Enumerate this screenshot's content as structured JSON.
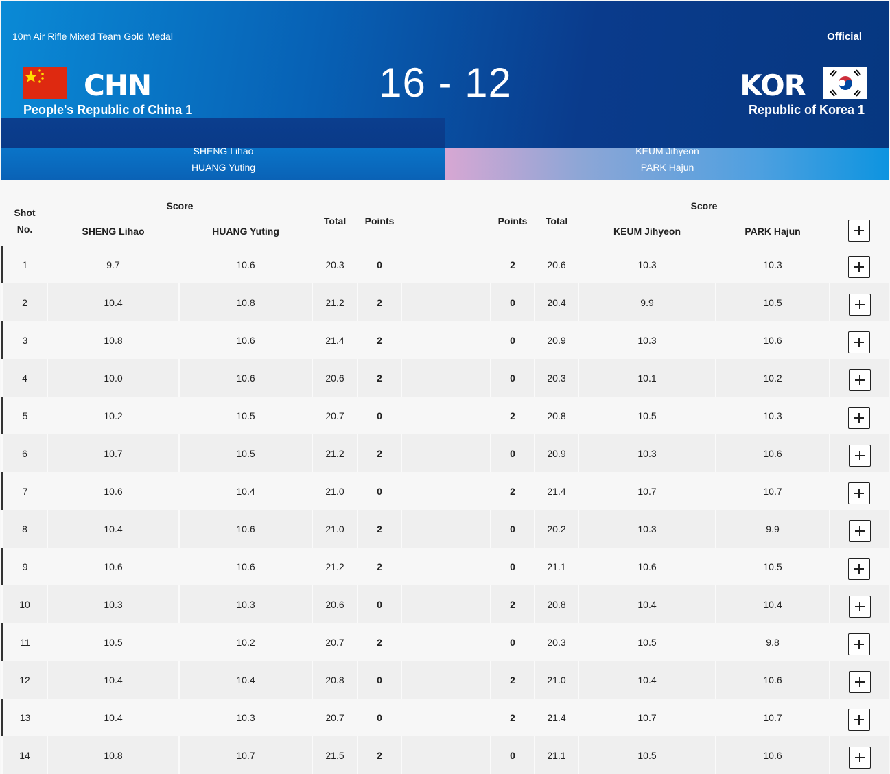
{
  "header": {
    "event": "10m Air Rifle Mixed Team Gold Medal",
    "status": "Official",
    "score": "16 - 12",
    "home": {
      "code": "CHN",
      "name": "People's Republic of China 1",
      "athletes": [
        "SHENG Lihao",
        "HUANG Yuting"
      ]
    },
    "away": {
      "code": "KOR",
      "name": "Republic of Korea 1",
      "athletes": [
        "KEUM Jihyeon",
        "PARK Hajun"
      ]
    }
  },
  "table": {
    "columns": {
      "shot": "Shot No.",
      "home_score": "Score",
      "home_athletes": [
        "SHENG Lihao",
        "HUANG Yuting"
      ],
      "home_total": "Total",
      "home_points": "Points",
      "away_points": "Points",
      "away_total": "Total",
      "away_score": "Score",
      "away_athletes": [
        "KEUM Jihyeon",
        "PARK Hajun"
      ]
    },
    "rows": [
      [
        "1",
        "9.7",
        "10.6",
        "20.3",
        "0",
        "2",
        "20.6",
        "10.3",
        "10.3"
      ],
      [
        "2",
        "10.4",
        "10.8",
        "21.2",
        "2",
        "0",
        "20.4",
        "9.9",
        "10.5"
      ],
      [
        "3",
        "10.8",
        "10.6",
        "21.4",
        "2",
        "0",
        "20.9",
        "10.3",
        "10.6"
      ],
      [
        "4",
        "10.0",
        "10.6",
        "20.6",
        "2",
        "0",
        "20.3",
        "10.1",
        "10.2"
      ],
      [
        "5",
        "10.2",
        "10.5",
        "20.7",
        "0",
        "2",
        "20.8",
        "10.5",
        "10.3"
      ],
      [
        "6",
        "10.7",
        "10.5",
        "21.2",
        "2",
        "0",
        "20.9",
        "10.3",
        "10.6"
      ],
      [
        "7",
        "10.6",
        "10.4",
        "21.0",
        "0",
        "2",
        "21.4",
        "10.7",
        "10.7"
      ],
      [
        "8",
        "10.4",
        "10.6",
        "21.0",
        "2",
        "0",
        "20.2",
        "10.3",
        "9.9"
      ],
      [
        "9",
        "10.6",
        "10.6",
        "21.2",
        "2",
        "0",
        "21.1",
        "10.6",
        "10.5"
      ],
      [
        "10",
        "10.3",
        "10.3",
        "20.6",
        "0",
        "2",
        "20.8",
        "10.4",
        "10.4"
      ],
      [
        "11",
        "10.5",
        "10.2",
        "20.7",
        "2",
        "0",
        "20.3",
        "10.5",
        "9.8"
      ],
      [
        "12",
        "10.4",
        "10.4",
        "20.8",
        "0",
        "2",
        "21.0",
        "10.4",
        "10.6"
      ],
      [
        "13",
        "10.4",
        "10.3",
        "20.7",
        "0",
        "2",
        "21.4",
        "10.7",
        "10.7"
      ],
      [
        "14",
        "10.8",
        "10.7",
        "21.5",
        "2",
        "0",
        "21.1",
        "10.5",
        "10.6"
      ]
    ]
  }
}
